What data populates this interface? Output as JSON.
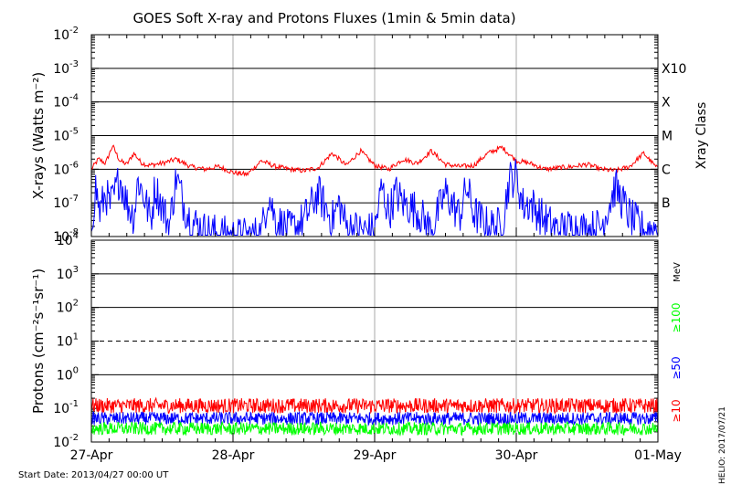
{
  "title": "GOES Soft X-ray and Protons Fluxes   (1min & 5min data)",
  "start_date": "Start Date: 2013/04/27 00:00 UT",
  "credit": "HELIO: 2017/07/21",
  "chart_data": [
    {
      "panel": "xray",
      "type": "line",
      "ylabel": "X-rays (Watts m⁻²)",
      "yscale": "log",
      "ylim": [
        1e-08,
        0.01
      ],
      "yticks": [
        {
          "base": "10",
          "exp": "-8"
        },
        {
          "base": "10",
          "exp": "-7"
        },
        {
          "base": "10",
          "exp": "-6"
        },
        {
          "base": "10",
          "exp": "-5"
        },
        {
          "base": "10",
          "exp": "-4"
        },
        {
          "base": "10",
          "exp": "-3"
        },
        {
          "base": "10",
          "exp": "-2"
        }
      ],
      "right_axis_label": "Xray Class",
      "class_labels": [
        {
          "label": "B",
          "value": 1e-07
        },
        {
          "label": "C",
          "value": 1e-06
        },
        {
          "label": "M",
          "value": 1e-05
        },
        {
          "label": "X",
          "value": 0.0001
        },
        {
          "label": "X10",
          "value": 0.001
        }
      ],
      "grid_lines": [
        1e-07,
        1e-06,
        1e-05,
        0.0001,
        0.001
      ],
      "series": [
        {
          "color": "#ff0000",
          "x": [
            0.0,
            0.05,
            0.1,
            0.15,
            0.2,
            0.25,
            0.3,
            0.35,
            0.4,
            0.5,
            0.6,
            0.7,
            0.8,
            0.9,
            1.0,
            1.1,
            1.2,
            1.3,
            1.4,
            1.5,
            1.6,
            1.7,
            1.8,
            1.9,
            2.0,
            2.1,
            2.2,
            2.3,
            2.4,
            2.5,
            2.6,
            2.7,
            2.8,
            2.9,
            3.0,
            3.1,
            3.2,
            3.3,
            3.4,
            3.5,
            3.6,
            3.7,
            3.8,
            3.9,
            4.0
          ],
          "y": [
            1e-06,
            2e-06,
            1.5e-06,
            5e-06,
            1.8e-06,
            1.4e-06,
            3e-06,
            1.6e-06,
            1.3e-06,
            1.5e-06,
            2e-06,
            1.2e-06,
            1e-06,
            1.2e-06,
            8e-07,
            7e-07,
            1.8e-06,
            1.2e-06,
            1e-06,
            9e-07,
            1.1e-06,
            3e-06,
            1.3e-06,
            3.5e-06,
            1.3e-06,
            1e-06,
            2e-06,
            1.5e-06,
            3.5e-06,
            1.4e-06,
            1.2e-06,
            1.3e-06,
            3e-06,
            4.5e-06,
            1.8e-06,
            1.5e-06,
            1e-06,
            1.1e-06,
            1.2e-06,
            1.4e-06,
            1e-06,
            9e-07,
            1.2e-06,
            3e-06,
            1e-06
          ]
        },
        {
          "color": "#0000ff",
          "x": [
            0.0,
            0.03,
            0.06,
            0.1,
            0.13,
            0.16,
            0.2,
            0.25,
            0.3,
            0.33,
            0.38,
            0.42,
            0.45,
            0.5,
            0.55,
            0.6,
            0.65,
            0.7,
            0.8,
            0.9,
            1.0,
            1.1,
            1.2,
            1.25,
            1.3,
            1.4,
            1.5,
            1.6,
            1.7,
            1.75,
            1.8,
            1.9,
            2.0,
            2.05,
            2.1,
            2.15,
            2.2,
            2.3,
            2.4,
            2.5,
            2.6,
            2.65,
            2.7,
            2.8,
            2.9,
            2.95,
            3.0,
            3.05,
            3.1,
            3.2,
            3.3,
            3.4,
            3.5,
            3.6,
            3.7,
            3.8,
            3.9,
            4.0
          ],
          "y": [
            2e-08,
            3e-07,
            5e-08,
            2e-07,
            8e-08,
            1.5e-07,
            6e-07,
            1e-07,
            4e-08,
            5e-07,
            1.2e-07,
            3e-08,
            3e-07,
            8e-08,
            2e-08,
            6e-07,
            1e-07,
            3e-08,
            1.5e-08,
            1.2e-08,
            1e-08,
            1e-08,
            1.2e-08,
            2e-07,
            3e-08,
            1.5e-08,
            3e-08,
            2e-07,
            3e-08,
            1e-07,
            2e-08,
            1.5e-08,
            1.5e-08,
            3e-07,
            5e-08,
            2e-07,
            1e-07,
            6e-08,
            1.5e-08,
            2e-07,
            4e-08,
            3e-07,
            5e-08,
            2e-08,
            2e-08,
            5e-07,
            6e-07,
            8e-08,
            1e-07,
            3e-08,
            1.5e-08,
            2e-08,
            1.5e-08,
            2e-08,
            3e-07,
            4e-08,
            1.5e-08,
            2e-08
          ]
        }
      ]
    },
    {
      "panel": "protons",
      "type": "line",
      "ylabel": "Protons (cm⁻²s⁻¹sr⁻¹)",
      "yscale": "log",
      "ylim": [
        0.01,
        10000
      ],
      "yticks": [
        {
          "base": "10",
          "exp": "-2"
        },
        {
          "base": "10",
          "exp": "-1"
        },
        {
          "base": "10",
          "exp": "0"
        },
        {
          "base": "10",
          "exp": "1"
        },
        {
          "base": "10",
          "exp": "2"
        },
        {
          "base": "10",
          "exp": "3"
        },
        {
          "base": "10",
          "exp": "4"
        }
      ],
      "right_axis_label": "MeV",
      "grid_lines": [
        1,
        100,
        1000
      ],
      "dashed_lines": [
        10
      ],
      "series": [
        {
          "name": "≥10",
          "color": "#ff0000",
          "level": 0.12,
          "spread": 1.6
        },
        {
          "name": "≥50",
          "color": "#0000ff",
          "level": 0.05,
          "spread": 1.5
        },
        {
          "name": "≥100",
          "color": "#00ff00",
          "level": 0.025,
          "spread": 1.5
        }
      ]
    }
  ],
  "x_axis": {
    "range": [
      0,
      4
    ],
    "ticks": [
      "27-Apr",
      "28-Apr",
      "29-Apr",
      "30-Apr",
      "01-May"
    ],
    "vertical_grid_days": [
      1,
      2,
      3
    ]
  }
}
